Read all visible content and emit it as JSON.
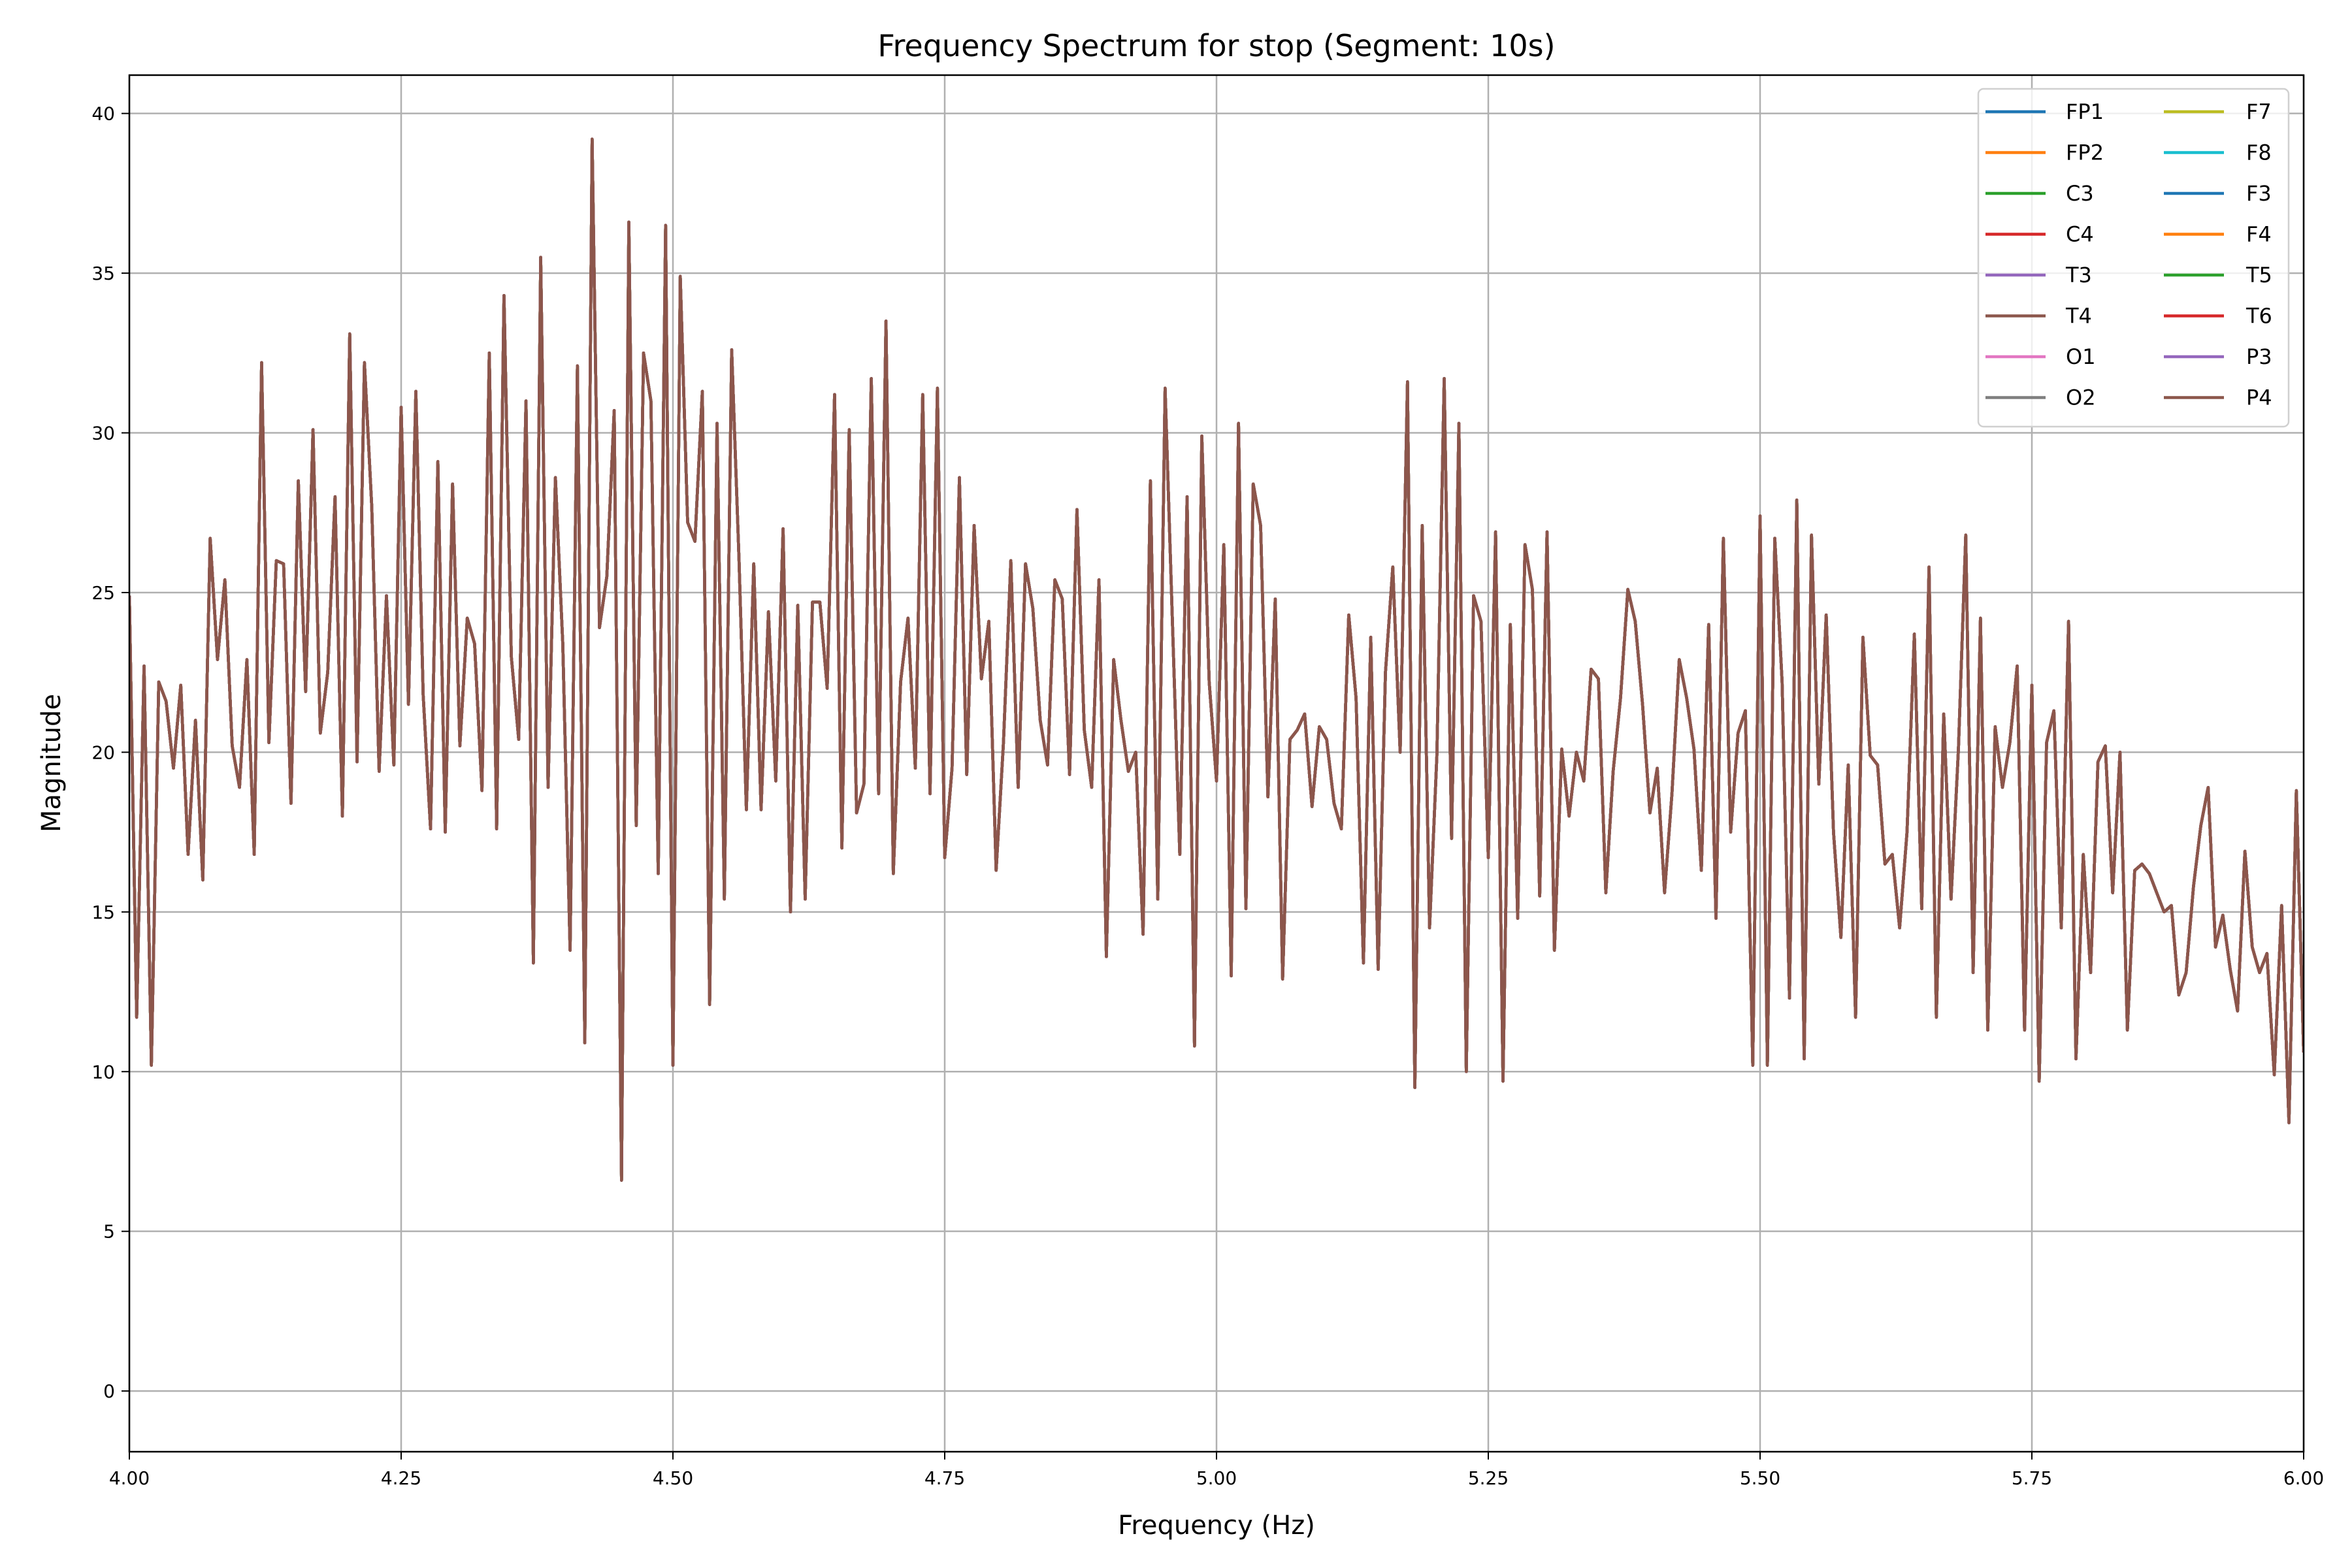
{
  "chart_data": {
    "type": "line",
    "title": "Frequency Spectrum for stop (Segment: 10s)",
    "xlabel": "Frequency (Hz)",
    "ylabel": "Magnitude",
    "xlim": [
      4.0,
      6.0
    ],
    "ylim": [
      -1.9,
      41.2
    ],
    "x_ticks": [
      "4.00",
      "4.25",
      "4.50",
      "4.75",
      "5.00",
      "5.25",
      "5.50",
      "5.75",
      "6.00"
    ],
    "y_ticks": [
      "0",
      "5",
      "10",
      "15",
      "20",
      "25",
      "30",
      "35",
      "40"
    ],
    "grid": true,
    "legend_placement": "top-right",
    "legend_columns": 2,
    "series": [
      {
        "name": "FP1",
        "color": "#1f77b4"
      },
      {
        "name": "FP2",
        "color": "#ff7f0e"
      },
      {
        "name": "C3",
        "color": "#2ca02c"
      },
      {
        "name": "C4",
        "color": "#d62728"
      },
      {
        "name": "T3",
        "color": "#9467bd"
      },
      {
        "name": "T4",
        "color": "#8c564b"
      },
      {
        "name": "O1",
        "color": "#e377c2"
      },
      {
        "name": "O2",
        "color": "#7f7f7f"
      },
      {
        "name": "F7",
        "color": "#bcbd22"
      },
      {
        "name": "F8",
        "color": "#17becf"
      },
      {
        "name": "F3",
        "color": "#1f77b4"
      },
      {
        "name": "F4",
        "color": "#ff7f0e"
      },
      {
        "name": "T5",
        "color": "#2ca02c"
      },
      {
        "name": "T6",
        "color": "#d62728"
      },
      {
        "name": "P3",
        "color": "#9467bd"
      },
      {
        "name": "P4",
        "color": "#8c564b"
      }
    ],
    "shared_magnitude_values": [
      24.9,
      11.7,
      22.7,
      10.2,
      22.2,
      21.6,
      19.5,
      22.1,
      16.8,
      21.0,
      16.0,
      26.7,
      22.9,
      25.4,
      20.2,
      18.9,
      22.9,
      16.8,
      32.2,
      20.3,
      26.0,
      25.9,
      18.4,
      28.5,
      21.9,
      30.1,
      20.6,
      22.5,
      28.0,
      18.0,
      33.1,
      19.7,
      32.2,
      27.7,
      19.4,
      24.9,
      19.6,
      30.8,
      21.5,
      31.3,
      21.8,
      17.6,
      29.1,
      17.5,
      28.4,
      20.2,
      24.2,
      23.4,
      18.8,
      32.5,
      17.6,
      34.3,
      23.0,
      20.4,
      31.0,
      13.4,
      35.5,
      18.9,
      28.6,
      23.4,
      13.8,
      32.1,
      10.9,
      39.2,
      23.9,
      25.5,
      30.7,
      6.6,
      36.6,
      17.7,
      32.5,
      31.0,
      16.2,
      36.5,
      10.2,
      34.9,
      27.2,
      26.6,
      31.3,
      12.1,
      30.3,
      15.4,
      32.6,
      26.0,
      18.2,
      25.9,
      18.2,
      24.4,
      19.1,
      27.0,
      15.0,
      24.6,
      15.4,
      24.7,
      24.7,
      22.0,
      31.2,
      17.0,
      30.1,
      18.1,
      19.0,
      31.7,
      18.7,
      33.5,
      16.2,
      22.2,
      24.2,
      19.5,
      31.2,
      18.7,
      31.4,
      16.7,
      19.5,
      28.6,
      19.3,
      27.1,
      22.3,
      24.1,
      16.3,
      20.3,
      26.0,
      18.9,
      25.9,
      24.5,
      21.0,
      19.6,
      25.4,
      24.8,
      19.3,
      27.6,
      20.7,
      18.9,
      25.4,
      13.6,
      22.9,
      21.0,
      19.4,
      20.0,
      14.3,
      28.5,
      15.4,
      31.4,
      24.1,
      16.8,
      28.0,
      10.8,
      29.9,
      22.2,
      19.1,
      26.5,
      13.0,
      30.3,
      15.1,
      28.4,
      27.1,
      18.6,
      24.8,
      12.9,
      20.4,
      20.7,
      21.2,
      18.3,
      20.8,
      20.4,
      18.4,
      17.6,
      24.3,
      21.7,
      13.4,
      23.6,
      13.2,
      22.5,
      25.8,
      20.0,
      31.6,
      9.5,
      27.1,
      14.5,
      19.9,
      31.7,
      17.3,
      30.3,
      10.0,
      24.9,
      24.1,
      16.7,
      26.9,
      9.7,
      24.0,
      14.8,
      26.5,
      25.1,
      15.5,
      26.9,
      13.8,
      20.1,
      18.0,
      20.0,
      19.1,
      22.6,
      22.3,
      15.6,
      19.4,
      21.7,
      25.1,
      24.1,
      21.5,
      18.1,
      19.5,
      15.6,
      18.7,
      22.9,
      21.7,
      20.1,
      16.3,
      24.0,
      14.8,
      26.7,
      17.5,
      20.6,
      21.3,
      10.2,
      27.4,
      10.2,
      26.7,
      22.2,
      12.3,
      27.9,
      10.4,
      26.8,
      19.0,
      24.3,
      17.5,
      14.2,
      19.6,
      11.7,
      23.6,
      19.9,
      19.6,
      16.5,
      16.8,
      14.5,
      17.5,
      23.7,
      15.1,
      25.8,
      11.7,
      21.2,
      15.4,
      20.1,
      26.8,
      13.1,
      24.2,
      11.3,
      20.8,
      18.9,
      20.3,
      22.7,
      11.3,
      22.1,
      9.7,
      20.3,
      21.3,
      14.5,
      24.1,
      10.4,
      16.8,
      13.1,
      19.7,
      20.2,
      15.6,
      20.0,
      11.3,
      16.3,
      16.5,
      16.2,
      15.6,
      15.0,
      15.2,
      12.4,
      13.1,
      15.8,
      17.7,
      18.9,
      13.9,
      14.9,
      13.2,
      11.9,
      16.9,
      13.9,
      13.1,
      13.7,
      9.9,
      15.2,
      8.4,
      18.8,
      10.6
    ]
  }
}
